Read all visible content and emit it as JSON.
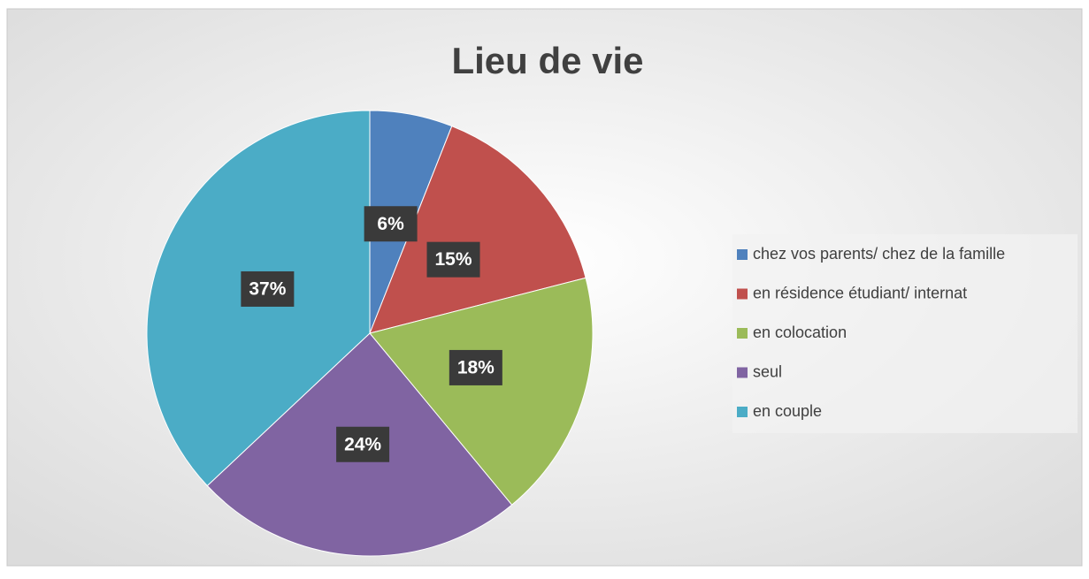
{
  "chart_data": {
    "type": "pie",
    "title": "Lieu de vie",
    "categories": [
      "chez vos parents/ chez de la famille",
      "en résidence étudiant/ internat",
      "en colocation",
      "seul",
      "en couple"
    ],
    "values": [
      6,
      15,
      18,
      24,
      37
    ],
    "value_labels": [
      "6%",
      "15%",
      "18%",
      "24%",
      "37%"
    ],
    "colors": [
      "#4f81bd",
      "#c0504d",
      "#9bbb59",
      "#8064a2",
      "#4bacc6"
    ],
    "legend": "right"
  }
}
